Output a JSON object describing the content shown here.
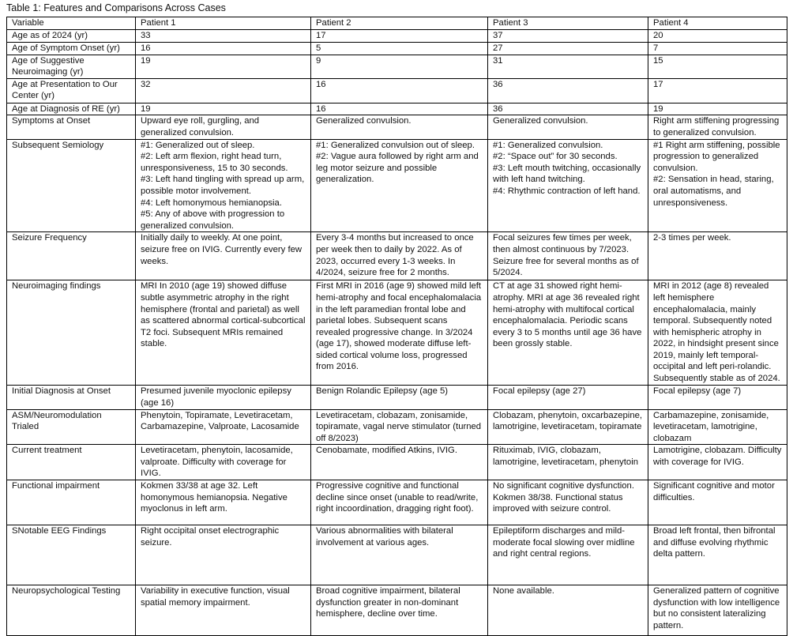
{
  "title": "Table 1: Features and Comparisons Across Cases",
  "headers": [
    "Variable",
    "Patient 1",
    "Patient 2",
    "Patient 3",
    "Patient 4"
  ],
  "rows": [
    [
      "Age as of 2024 (yr)",
      "33",
      "17",
      "37",
      "20"
    ],
    [
      "Age of Symptom Onset (yr)",
      "16",
      "5",
      "27",
      "7"
    ],
    [
      "Age of Suggestive Neuroimaging (yr)",
      "19",
      "9",
      "31",
      "15"
    ],
    [
      "Age at Presentation to Our Center (yr)",
      "32",
      "16",
      "36",
      "17"
    ],
    [
      "Age at Diagnosis of RE (yr)",
      "19",
      "16",
      "36",
      "19"
    ],
    [
      "Symptoms at Onset",
      "Upward eye roll, gurgling, and generalized convulsion.",
      "Generalized convulsion.",
      "Generalized convulsion.",
      "Right arm stiffening progressing to generalized convulsion."
    ],
    [
      "Subsequent Semiology",
      "#1: Generalized out of sleep.\n#2: Left arm flexion, right head turn, unresponsiveness, 15 to 30 seconds.\n#3: Left hand tingling with spread up arm, possible motor involvement.\n#4: Left homonymous hemianopsia.\n#5: Any of above with progression to generalized convulsion.",
      "#1: Generalized convulsion out of sleep.\n#2: Vague aura followed by right arm and leg motor seizure and possible generalization.",
      "#1: Generalized convulsion.\n#2: “Space out” for 30 seconds.\n#3: Left mouth twitching, occasionally with left hand twitching.\n#4: Rhythmic contraction of left hand.",
      "#1 Right arm stiffening, possible progression to generalized convulsion.\n#2: Sensation in head, staring, oral automatisms, and unresponsiveness."
    ],
    [
      "Seizure Frequency",
      "Initially daily to weekly. At one point, seizure free on IVIG. Currently every few weeks.",
      "Every 3-4 months but increased to once per week then to daily by 2022. As of 2023, occurred every 1-3 weeks. In 4/2024, seizure free for 2 months.",
      "Focal seizures few times per week, then almost continuous by 7/2023. Seizure free for several months as of 5/2024.",
      "2-3 times per week."
    ],
    [
      "Neuroimaging findings",
      "MRI In 2010 (age 19) showed diffuse subtle asymmetric atrophy in the right hemisphere (frontal and parietal) as well as scattered abnormal cortical-subcortical T2 foci. Subsequent MRIs remained stable.",
      "First MRI in 2016 (age 9) showed mild left hemi-atrophy and focal encephalomalacia in the left paramedian frontal lobe and parietal lobes. Subsequent scans revealed progressive change. In 3/2024 (age 17), showed moderate diffuse left-sided cortical volume loss, progressed from 2016.",
      "CT at age 31 showed right hemi-atrophy. MRI at age 36 revealed right hemi-atrophy with multifocal cortical encephalomalacia. Periodic scans every 3 to 5 months until age 36 have been grossly stable.",
      "MRI in 2012 (age 8) revealed left hemisphere encephalomalacia, mainly temporal. Subsequently noted with hemispheric atrophy in 2022, in hindsight present since 2019, mainly left temporal-occipital and left peri-rolandic. Subsequently stable as of 2024."
    ],
    [
      "Initial Diagnosis at Onset",
      "Presumed juvenile myoclonic epilepsy (age 16)",
      "Benign Rolandic Epilepsy (age 5)",
      "Focal epilepsy (age 27)",
      "Focal epilepsy (age 7)"
    ],
    [
      "ASM/Neuromodulation Trialed",
      "Phenytoin, Topiramate, Levetiracetam, Carbamazepine, Valproate, Lacosamide",
      "Levetiracetam, clobazam, zonisamide, topiramate, vagal nerve stimulator (turned off 8/2023)",
      "Clobazam, phenytoin, oxcarbazepine, lamotrigine, levetiracetam, topiramate",
      "Carbamazepine, zonisamide, levetiracetam, lamotrigine, clobazam"
    ],
    [
      "Current treatment",
      "Levetiracetam, phenytoin, lacosamide, valproate. Difficulty with coverage for IVIG.",
      "Cenobamate, modified Atkins, IVIG.",
      "Rituximab, IVIG, clobazam, lamotrigine, levetiracetam, phenytoin",
      "Lamotrigine, clobazam. Difficulty with coverage for IVIG."
    ],
    [
      "Functional impairment",
      "Kokmen 33/38 at age 32. Left homonymous hemianopsia. Negative myoclonus in left arm.",
      "Progressive cognitive and functional decline since onset (unable to read/write, right incoordination, dragging right foot).",
      "No significant cognitive dysfunction. Kokmen 38/38. Functional status improved with seizure control.",
      "Significant cognitive and motor difficulties."
    ],
    [
      "SNotable EEG Findings",
      "Right occipital onset electrographic seizure.",
      "Various abnormalities with bilateral involvement at various ages.",
      "Epileptiform discharges and mild-moderate focal slowing over midline and right central regions.",
      "Broad left frontal, then bifrontal and diffuse evolving rhythmic delta pattern."
    ],
    [
      "Neuropsychological Testing",
      "Variability in executive function, visual spatial memory impairment.",
      "Broad cognitive impairment, bilateral dysfunction greater in non-dominant hemisphere, decline over time.",
      "None available.",
      "Generalized pattern of cognitive dysfunction with low intelligence but no consistent lateralizing pattern."
    ]
  ]
}
